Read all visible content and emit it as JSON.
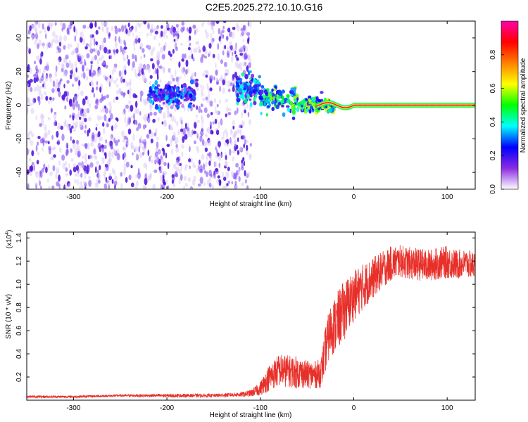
{
  "title": "C2E5.2025.272.10.10.G16",
  "colors": {
    "axis": "#000000",
    "snr_line": "#e8302a",
    "spectrogram_light": "#d9c8f5",
    "spectrogram_mid": "#7a3ff0",
    "spectrogram_dark": "#4b0fd9",
    "colorbar_stops": [
      "#ffffff",
      "#8a2be2",
      "#0000ff",
      "#00ffff",
      "#00ff00",
      "#ffff00",
      "#ff8000",
      "#ff0000",
      "#ff00aa"
    ]
  },
  "chart_data": [
    {
      "type": "heatmap",
      "name": "spectrogram",
      "xlabel": "Height of straight line (km)",
      "ylabel": "Frequency (Hz)",
      "xlim": [
        -350,
        130
      ],
      "ylim": [
        -50,
        50
      ],
      "xticks": [
        -300,
        -200,
        -100,
        0,
        100
      ],
      "xtick_labels": [
        "-300",
        "-200",
        "-100",
        "0",
        "100"
      ],
      "yticks": [
        -40,
        -20,
        0,
        20,
        40
      ],
      "ytick_labels": [
        "-40",
        "-20",
        "0",
        "20",
        "40"
      ],
      "noise_region_x": [
        -350,
        -110
      ],
      "clusters": [
        {
          "x_range": [
            -220,
            -170
          ],
          "freq_center": 6,
          "freq_spread": 6,
          "amplitude": 0.25
        },
        {
          "x_range": [
            -125,
            -100
          ],
          "freq_center": 10,
          "freq_spread": 8,
          "amplitude": 0.3
        },
        {
          "x_range": [
            -100,
            -60
          ],
          "freq_center": 3,
          "freq_spread": 7,
          "amplitude": 0.4
        },
        {
          "x_range": [
            -60,
            -20
          ],
          "freq_center": 0,
          "freq_spread": 4,
          "amplitude": 0.45
        }
      ],
      "track": {
        "x_range": [
          -40,
          130
        ],
        "freq": 0,
        "peak_amplitude": 1.0
      },
      "colorbar": {
        "label": "Normalized spectral amplitude",
        "range": [
          0,
          1
        ],
        "ticks": [
          0.0,
          0.2,
          0.4,
          0.6,
          0.8
        ],
        "tick_labels": [
          "0.0",
          "0.2",
          "0.4",
          "0.6",
          "0.8"
        ]
      }
    },
    {
      "type": "line",
      "name": "snr",
      "xlabel": "Height of straight line (km)",
      "ylabel": "SNR (10 * v/v)",
      "y_multiplier": "(x10",
      "y_multiplier_exp": "4",
      "y_multiplier_close": ")",
      "xlim": [
        -350,
        130
      ],
      "ylim": [
        0,
        1.45
      ],
      "xticks": [
        -300,
        -200,
        -100,
        0,
        100
      ],
      "xtick_labels": [
        "-300",
        "-200",
        "-100",
        "0",
        "100"
      ],
      "yticks": [
        0.2,
        0.4,
        0.6,
        0.8,
        1.0,
        1.2,
        1.4
      ],
      "ytick_labels": [
        "0.2",
        "0.4",
        "0.6",
        "0.8",
        "1.0",
        "1.2",
        "1.4"
      ],
      "series": [
        {
          "name": "SNR",
          "x": [
            -350,
            -300,
            -250,
            -200,
            -150,
            -120,
            -110,
            -100,
            -90,
            -80,
            -70,
            -60,
            -50,
            -40,
            -35,
            -30,
            -25,
            -20,
            -10,
            0,
            10,
            20,
            30,
            40,
            50,
            60,
            70,
            80,
            90,
            100,
            110,
            120,
            130
          ],
          "mean": [
            0.03,
            0.03,
            0.04,
            0.04,
            0.04,
            0.05,
            0.06,
            0.1,
            0.2,
            0.26,
            0.25,
            0.24,
            0.22,
            0.22,
            0.24,
            0.45,
            0.6,
            0.65,
            0.78,
            0.9,
            0.98,
            1.05,
            1.12,
            1.18,
            1.2,
            1.18,
            1.17,
            1.16,
            1.18,
            1.19,
            1.17,
            1.18,
            1.16
          ],
          "spread": [
            0.01,
            0.01,
            0.01,
            0.015,
            0.015,
            0.02,
            0.03,
            0.06,
            0.12,
            0.14,
            0.14,
            0.14,
            0.12,
            0.12,
            0.13,
            0.2,
            0.22,
            0.25,
            0.26,
            0.22,
            0.2,
            0.18,
            0.16,
            0.15,
            0.14,
            0.14,
            0.14,
            0.14,
            0.14,
            0.14,
            0.13,
            0.12,
            0.12
          ]
        }
      ]
    }
  ]
}
